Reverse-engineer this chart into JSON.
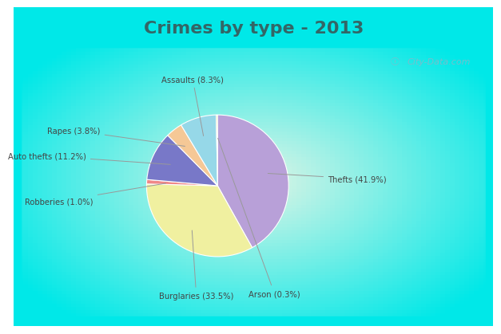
{
  "title": "Crimes by type - 2013",
  "labels": [
    "Thefts",
    "Burglaries",
    "Robberies",
    "Auto thefts",
    "Rapes",
    "Assaults",
    "Arson"
  ],
  "values": [
    41.9,
    33.5,
    1.0,
    11.2,
    3.8,
    8.3,
    0.3
  ],
  "colors": [
    "#b8a0d8",
    "#f0f0a0",
    "#f08888",
    "#7878c8",
    "#f5c896",
    "#96d8e8",
    "#d8d8a0"
  ],
  "label_texts": [
    "Thefts (41.9%)",
    "Burglaries (33.5%)",
    "Robberies (1.0%)",
    "Auto thefts (11.2%)",
    "Rapes (3.8%)",
    "Assaults (8.3%)",
    "Arson (0.3%)"
  ],
  "background_cyan": "#00e8e8",
  "background_center": "#d8efe0",
  "title_fontsize": 16,
  "watermark": "City-Data.com",
  "title_color": "#336666",
  "label_color": "#444444"
}
